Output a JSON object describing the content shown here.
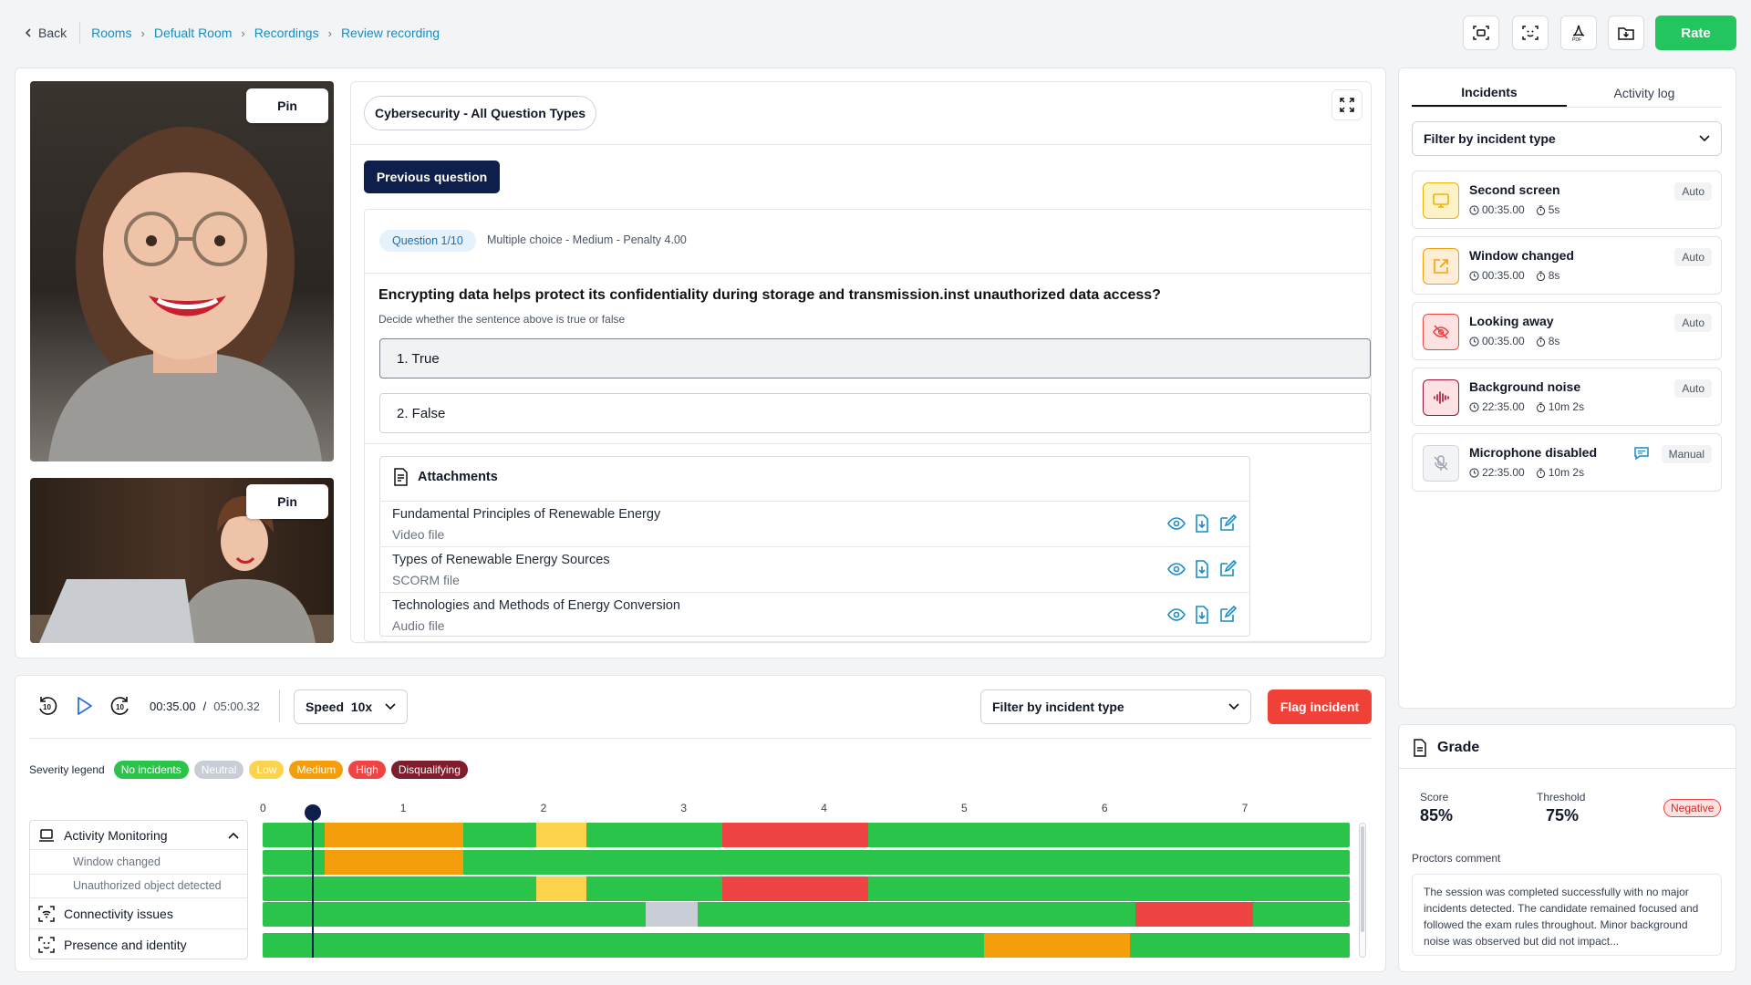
{
  "breadcrumb": {
    "back": "Back",
    "items": [
      "Rooms",
      "Defualt Room",
      "Recordings",
      "Review recording"
    ]
  },
  "toolbar": {
    "rate_label": "Rate",
    "icons": [
      "screenshot-icon",
      "face-scan-icon",
      "pdf-export-icon",
      "folder-download-icon"
    ]
  },
  "videos": {
    "pin_label": "Pin"
  },
  "exam": {
    "title": "Cybersecurity - All Question Types",
    "prev_label": "Previous question",
    "question_badge": "Question 1/10",
    "question_meta": "Multiple choice - Medium - Penalty 4.00",
    "question_text": "Encrypting data helps protect its confidentiality during storage and transmission.inst unauthorized data access?",
    "question_hint": "Decide whether the sentence above is true or false",
    "options": [
      "1. True",
      "2. False"
    ],
    "attachments_title": "Attachments",
    "attachments": [
      {
        "title": "Fundamental Principles of Renewable Energy",
        "type": "Video file"
      },
      {
        "title": "Types of Renewable Energy Sources",
        "type": "SCORM file"
      },
      {
        "title": "Technologies and Methods of Energy Conversion",
        "type": "Audio file"
      }
    ]
  },
  "player": {
    "current_time": "00:35.00",
    "divider": "/",
    "total_time": "05:00.32",
    "speed_label": "Speed",
    "speed_value": "10x",
    "filter_label": "Filter by incident type",
    "flag_label": "Flag incident",
    "progress": 0.02
  },
  "legend": {
    "label": "Severity legend",
    "items": [
      {
        "label": "No incidents",
        "color": "#2bc44a"
      },
      {
        "label": "Neutral",
        "color": "#c9ced6"
      },
      {
        "label": "Low",
        "color": "#fcd34d"
      },
      {
        "label": "Medium",
        "color": "#f59e0b"
      },
      {
        "label": "High",
        "color": "#ef4444"
      },
      {
        "label": "Disqualifying",
        "color": "#7f1d2d"
      }
    ]
  },
  "timeline": {
    "ticks": [
      "0",
      "1",
      "2",
      "3",
      "4",
      "5",
      "6",
      "7"
    ],
    "max": 7.75,
    "categories": {
      "activity": "Activity Monitoring",
      "window": "Window changed",
      "object": "Unauthorized object detected",
      "connectivity": "Connectivity issues",
      "presence": "Presence and identity"
    },
    "tracks": [
      [
        {
          "from": 0.44,
          "to": 1.43,
          "severity": "Medium"
        },
        {
          "from": 1.95,
          "to": 2.31,
          "severity": "Low"
        },
        {
          "from": 3.28,
          "to": 4.32,
          "severity": "High"
        }
      ],
      [
        {
          "from": 0.44,
          "to": 1.43,
          "severity": "Medium"
        }
      ],
      [
        {
          "from": 1.95,
          "to": 2.31,
          "severity": "Low"
        },
        {
          "from": 3.28,
          "to": 4.32,
          "severity": "High"
        }
      ],
      [
        {
          "from": 2.73,
          "to": 3.1,
          "severity": "Neutral"
        },
        {
          "from": 6.22,
          "to": 7.06,
          "severity": "High"
        }
      ],
      [
        {
          "from": 5.14,
          "to": 6.18,
          "severity": "Medium"
        }
      ]
    ]
  },
  "side": {
    "tabs": [
      "Incidents",
      "Activity log"
    ],
    "filter_label": "Filter by incident type",
    "incidents": [
      {
        "title": "Second screen",
        "time": "00:35.00",
        "dur": "5s",
        "tag": "Auto",
        "icon": "monitor-icon",
        "bg": "#fef3c7",
        "fg": "#eab308"
      },
      {
        "title": "Window changed",
        "time": "00:35.00",
        "dur": "8s",
        "tag": "Auto",
        "icon": "external-window-icon",
        "bg": "#ffedd5",
        "fg": "#f59e0b"
      },
      {
        "title": "Looking away",
        "time": "00:35.00",
        "dur": "8s",
        "tag": "Auto",
        "icon": "eye-off-icon",
        "bg": "#fee2e2",
        "fg": "#ef4444"
      },
      {
        "title": "Background noise",
        "time": "22:35.00",
        "dur": "10m 2s",
        "tag": "Auto",
        "icon": "audio-wave-icon",
        "bg": "#fde2e4",
        "fg": "#9f1239"
      },
      {
        "title": "Microphone disabled",
        "time": "22:35.00",
        "dur": "10m 2s",
        "tag": "Manual",
        "icon": "mic-off-icon",
        "bg": "#f3f4f6",
        "fg": "#9ca3af"
      }
    ]
  },
  "grade": {
    "title": "Grade",
    "score_label": "Score",
    "score": "85%",
    "threshold_label": "Threshold",
    "threshold": "75%",
    "status": "Negative",
    "comment_label": "Proctors comment",
    "comment": "The session was completed successfully with no major incidents detected. The candidate remained focused and followed the exam rules throughout. Minor background noise was observed but did not impact..."
  }
}
